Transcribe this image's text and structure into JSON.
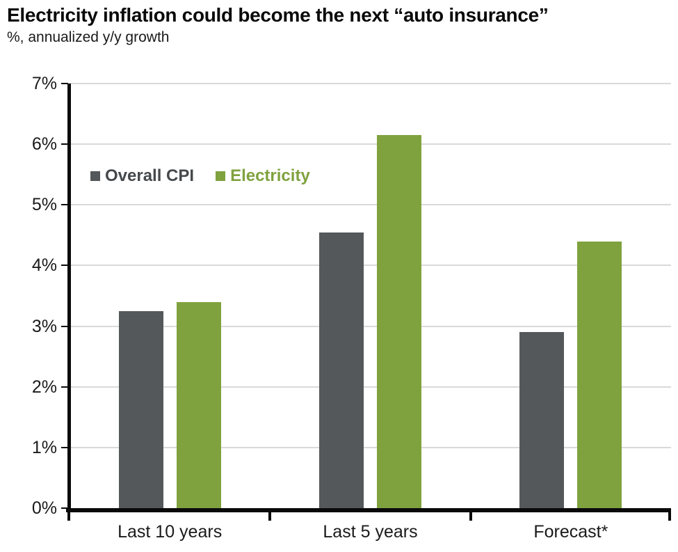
{
  "chart_data": {
    "type": "bar",
    "title": "Electricity inflation could become the next “auto insurance”",
    "subtitle": "%, annualized y/y growth",
    "categories": [
      "Last 10 years",
      "Last 5 years",
      "Forecast*"
    ],
    "series": [
      {
        "name": "Overall CPI",
        "color": "#54585A",
        "values": [
          3.25,
          4.55,
          2.9
        ]
      },
      {
        "name": "Electricity",
        "color": "#7FA23E",
        "values": [
          3.4,
          6.15,
          4.4
        ]
      }
    ],
    "ylim": [
      0,
      7
    ],
    "ytick_labels": [
      "0%",
      "1%",
      "2%",
      "3%",
      "4%",
      "5%",
      "6%",
      "7%"
    ],
    "xlabel": "",
    "ylabel": "",
    "grid": true,
    "gridline_color": "#d9d9d9",
    "axis_color": "#0a0a0a",
    "legend_position": "inside-top-left"
  }
}
